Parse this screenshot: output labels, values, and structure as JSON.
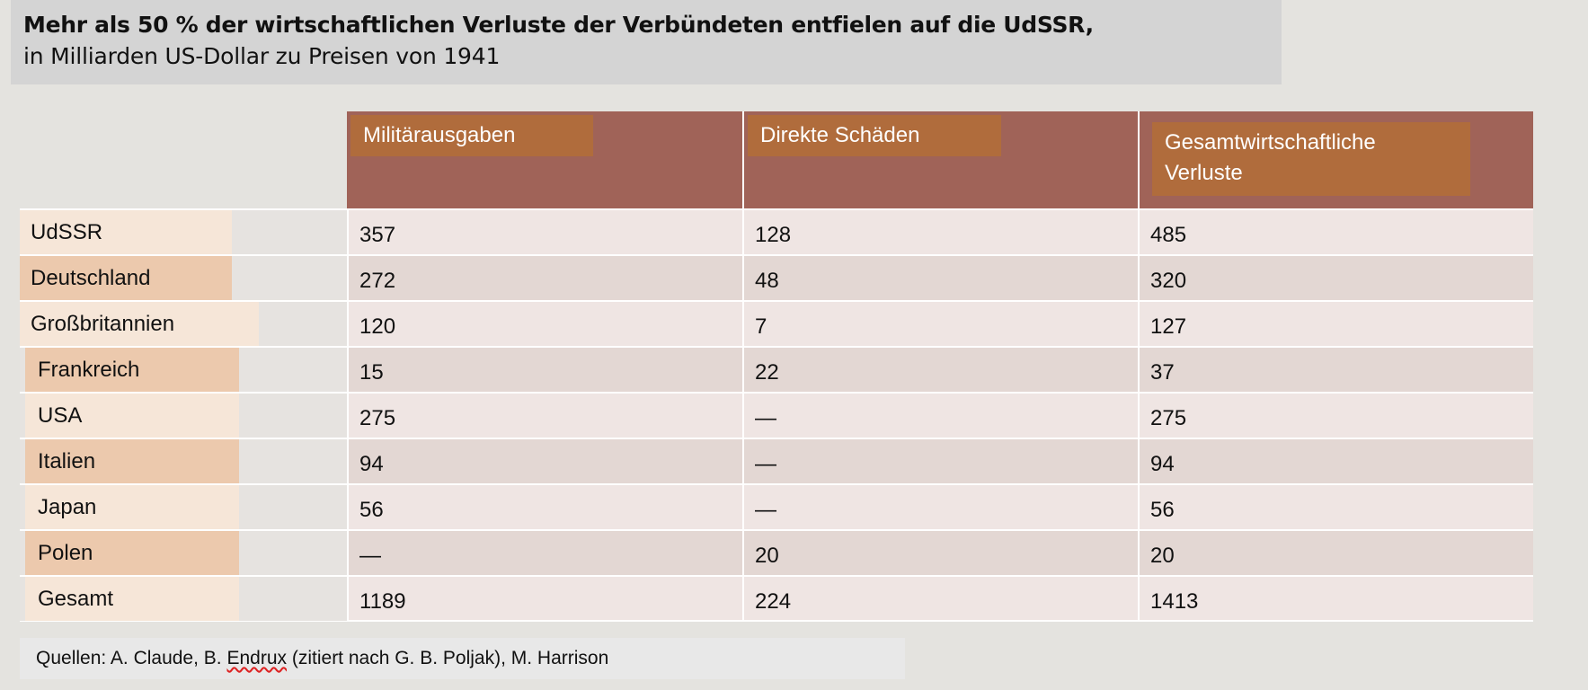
{
  "title": {
    "line1": "Mehr als 50 % der wirtschaftlichen Verluste der Verbündeten entfielen auf die UdSSR,",
    "line2": "in Milliarden US-Dollar zu Preisen von 1941"
  },
  "table": {
    "headers": [
      "Militärausgaben",
      "Direkte Schäden",
      "Gesamtwirtschaftliche Verluste"
    ],
    "header_lines": {
      "h3_line1": "Gesamtwirtschaftliche",
      "h3_line2": "Verluste"
    },
    "rows": [
      {
        "label": "UdSSR",
        "values": [
          "357",
          "128",
          "485"
        ]
      },
      {
        "label": "Deutschland",
        "values": [
          "272",
          "48",
          "320"
        ]
      },
      {
        "label": "Großbritannien",
        "values": [
          "120",
          "7",
          "127"
        ]
      },
      {
        "label": "Frankreich",
        "values": [
          "15",
          "22",
          "37"
        ]
      },
      {
        "label": "USA",
        "values": [
          "275",
          "—",
          "275"
        ]
      },
      {
        "label": "Italien",
        "values": [
          "94",
          "—",
          "94"
        ]
      },
      {
        "label": "Japan",
        "values": [
          "56",
          "—",
          "56"
        ]
      },
      {
        "label": "Polen",
        "values": [
          "—",
          "20",
          "20"
        ]
      },
      {
        "label": "Gesamt",
        "values": [
          "1189",
          "224",
          "1413"
        ]
      }
    ]
  },
  "source": {
    "prefix": "Quellen: A. Claude, B. ",
    "flagged_word": "Endrux",
    "suffix": " (zitiert nach G. B. Poljak), M. Harrison"
  },
  "colors": {
    "header_bg": "#a06358",
    "header_label_bg": "#b06c3c",
    "row_light": "#efe5e3",
    "row_dark": "#e3d7d3",
    "label_chip_light": "#f6e6d8",
    "label_chip_dark": "#ecc9ad"
  }
}
